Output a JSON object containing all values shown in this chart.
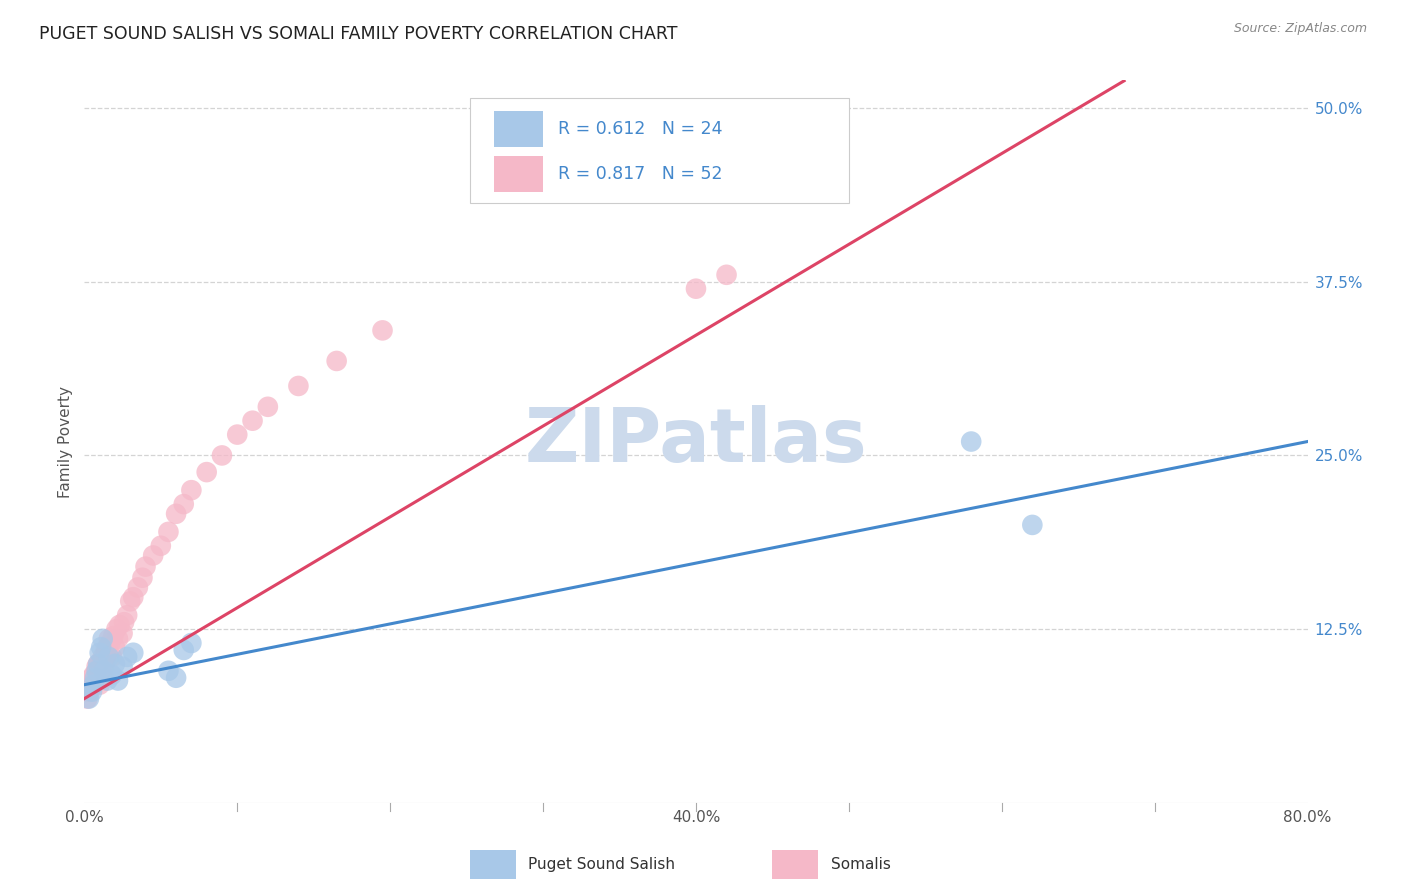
{
  "title": "PUGET SOUND SALISH VS SOMALI FAMILY POVERTY CORRELATION CHART",
  "source": "Source: ZipAtlas.com",
  "ylabel": "Family Poverty",
  "xlim": [
    0.0,
    0.8
  ],
  "ylim": [
    0.0,
    0.52
  ],
  "bg_color": "#ffffff",
  "grid_color": "#d4d4d4",
  "puget_color": "#a8c8e8",
  "somali_color": "#f5b8c8",
  "puget_line_color": "#4488cc",
  "somali_line_color": "#dd4466",
  "R_puget": 0.612,
  "N_puget": 24,
  "R_somali": 0.817,
  "N_somali": 52,
  "legend_label_puget": "Puget Sound Salish",
  "legend_label_somali": "Somalis",
  "watermark": "ZIPatlas",
  "watermark_color": "#ccdaec",
  "ytick_vals": [
    0.125,
    0.25,
    0.375,
    0.5
  ],
  "ytick_labels": [
    "12.5%",
    "25.0%",
    "37.5%",
    "50.0%"
  ],
  "xtick_vals": [
    0.0,
    0.4,
    0.8
  ],
  "xtick_labels": [
    "0.0%",
    "40.0%",
    "80.0%"
  ],
  "puget_x": [
    0.003,
    0.005,
    0.006,
    0.007,
    0.008,
    0.009,
    0.01,
    0.011,
    0.012,
    0.013,
    0.015,
    0.016,
    0.018,
    0.02,
    0.022,
    0.025,
    0.028,
    0.032,
    0.055,
    0.065,
    0.06,
    0.07,
    0.58,
    0.62
  ],
  "puget_y": [
    0.075,
    0.08,
    0.085,
    0.09,
    0.095,
    0.1,
    0.108,
    0.112,
    0.118,
    0.095,
    0.088,
    0.105,
    0.092,
    0.1,
    0.088,
    0.098,
    0.105,
    0.108,
    0.095,
    0.11,
    0.09,
    0.115,
    0.26,
    0.2
  ],
  "somali_x": [
    0.002,
    0.003,
    0.004,
    0.005,
    0.005,
    0.006,
    0.007,
    0.008,
    0.008,
    0.009,
    0.01,
    0.01,
    0.011,
    0.012,
    0.012,
    0.013,
    0.014,
    0.014,
    0.015,
    0.015,
    0.016,
    0.017,
    0.018,
    0.019,
    0.02,
    0.021,
    0.022,
    0.023,
    0.025,
    0.026,
    0.028,
    0.03,
    0.032,
    0.035,
    0.038,
    0.04,
    0.045,
    0.05,
    0.055,
    0.06,
    0.065,
    0.07,
    0.08,
    0.09,
    0.1,
    0.11,
    0.12,
    0.14,
    0.165,
    0.195,
    0.4,
    0.42
  ],
  "somali_y": [
    0.075,
    0.08,
    0.082,
    0.085,
    0.09,
    0.092,
    0.088,
    0.095,
    0.098,
    0.1,
    0.085,
    0.095,
    0.1,
    0.105,
    0.092,
    0.098,
    0.11,
    0.105,
    0.112,
    0.108,
    0.118,
    0.115,
    0.105,
    0.12,
    0.112,
    0.125,
    0.118,
    0.128,
    0.122,
    0.13,
    0.135,
    0.145,
    0.148,
    0.155,
    0.162,
    0.17,
    0.178,
    0.185,
    0.195,
    0.208,
    0.215,
    0.225,
    0.238,
    0.25,
    0.265,
    0.275,
    0.285,
    0.3,
    0.318,
    0.34,
    0.37,
    0.38
  ]
}
